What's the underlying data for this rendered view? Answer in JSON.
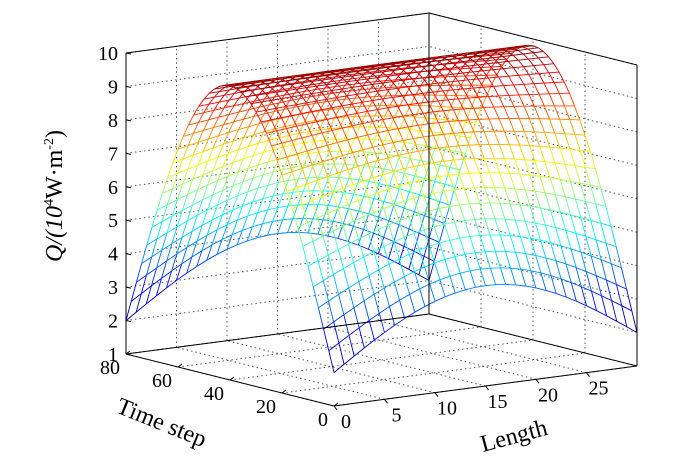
{
  "chart_data": {
    "type": "surface-mesh",
    "title": "",
    "zlabel_text": "Q/(10",
    "zlabel_sup1": "4",
    "zlabel_mid": "W·m",
    "zlabel_sup2": "-2",
    "zlabel_end": ")",
    "xlabel": "Time step",
    "ylabel": "Length",
    "xlim": [
      0,
      80
    ],
    "ylim": [
      0,
      30
    ],
    "zlim": [
      1,
      10
    ],
    "xticks": [
      0,
      20,
      40,
      60,
      80
    ],
    "yticks": [
      0,
      5,
      10,
      15,
      20,
      25
    ],
    "zticks": [
      1,
      2,
      3,
      4,
      5,
      6,
      7,
      8,
      9,
      10
    ],
    "grid": true,
    "colormap": "jet",
    "peak": {
      "time_step": 40,
      "length": 15,
      "Q": 9.8
    },
    "edge_minimum_Q": 2.0,
    "mid_length_minimum_Q": 4.0,
    "color_range": [
      2,
      10
    ]
  }
}
